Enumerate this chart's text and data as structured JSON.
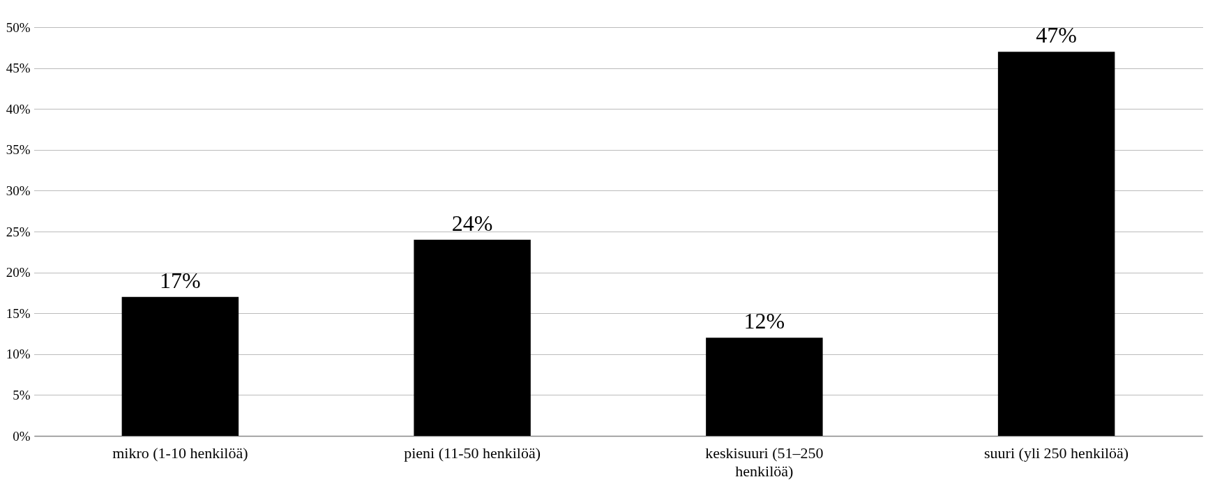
{
  "chart_data": {
    "type": "bar",
    "categories": [
      "mikro (1-10 henkilöä)",
      "pieni  (11-50 henkilöä)",
      "keskisuuri  (51–250 henkilöä)",
      "suuri (yli 250 henkilöä)"
    ],
    "values": [
      17,
      24,
      12,
      47
    ],
    "color": "#000000",
    "ylim": [
      0,
      50
    ],
    "yticks": [
      {
        "value": 0,
        "label": "0%"
      },
      {
        "value": 5,
        "label": "5%"
      },
      {
        "value": 10,
        "label": "10%"
      },
      {
        "value": 15,
        "label": "15%"
      },
      {
        "value": 20,
        "label": "20%"
      },
      {
        "value": 25,
        "label": "25%"
      },
      {
        "value": 30,
        "label": "30%"
      },
      {
        "value": 35,
        "label": "35%"
      },
      {
        "value": 40,
        "label": "40%"
      },
      {
        "value": 45,
        "label": "45%"
      },
      {
        "value": 50,
        "label": "50%"
      }
    ],
    "value_labels": [
      "17%",
      "24%",
      "12%",
      "47%"
    ],
    "grid": "y"
  }
}
